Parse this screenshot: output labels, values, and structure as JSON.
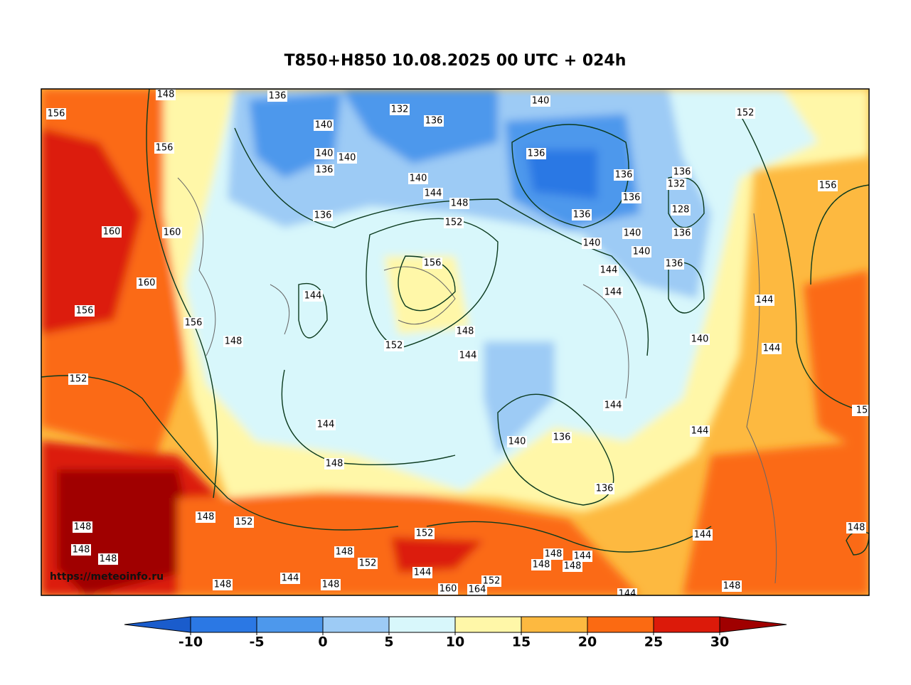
{
  "title": "T850+H850 10.08.2025 00 UTC + 024h",
  "watermark": "https://meteoinfo.ru",
  "colorbar": {
    "ticks": [
      -10,
      -5,
      0,
      5,
      10,
      15,
      20,
      25,
      30
    ],
    "colors": [
      "#1a5ccc",
      "#2b78e4",
      "#4d98ec",
      "#9dcbf5",
      "#d8f7fb",
      "#fff7a8",
      "#fdb940",
      "#fb6a12",
      "#dc1a0a",
      "#a00000"
    ]
  },
  "contour_labels": [
    "148",
    "136",
    "132",
    "136",
    "140",
    "152",
    "156",
    "156",
    "140",
    "140",
    "140",
    "136",
    "140",
    "136",
    "144",
    "148",
    "136",
    "136",
    "132",
    "136",
    "128",
    "136",
    "136",
    "152",
    "160",
    "160",
    "156",
    "140",
    "136",
    "140",
    "140",
    "156",
    "136",
    "144",
    "144",
    "160",
    "144",
    "144",
    "156",
    "156",
    "148",
    "148",
    "140",
    "152",
    "144",
    "144",
    "152",
    "144",
    "15",
    "144",
    "144",
    "136",
    "140",
    "148",
    "136",
    "148",
    "152",
    "148",
    "152",
    "144",
    "148",
    "148",
    "148",
    "148",
    "148",
    "144",
    "152",
    "148",
    "148",
    "144",
    "144",
    "148",
    "148",
    "152",
    "160",
    "164",
    "148",
    "144"
  ]
}
